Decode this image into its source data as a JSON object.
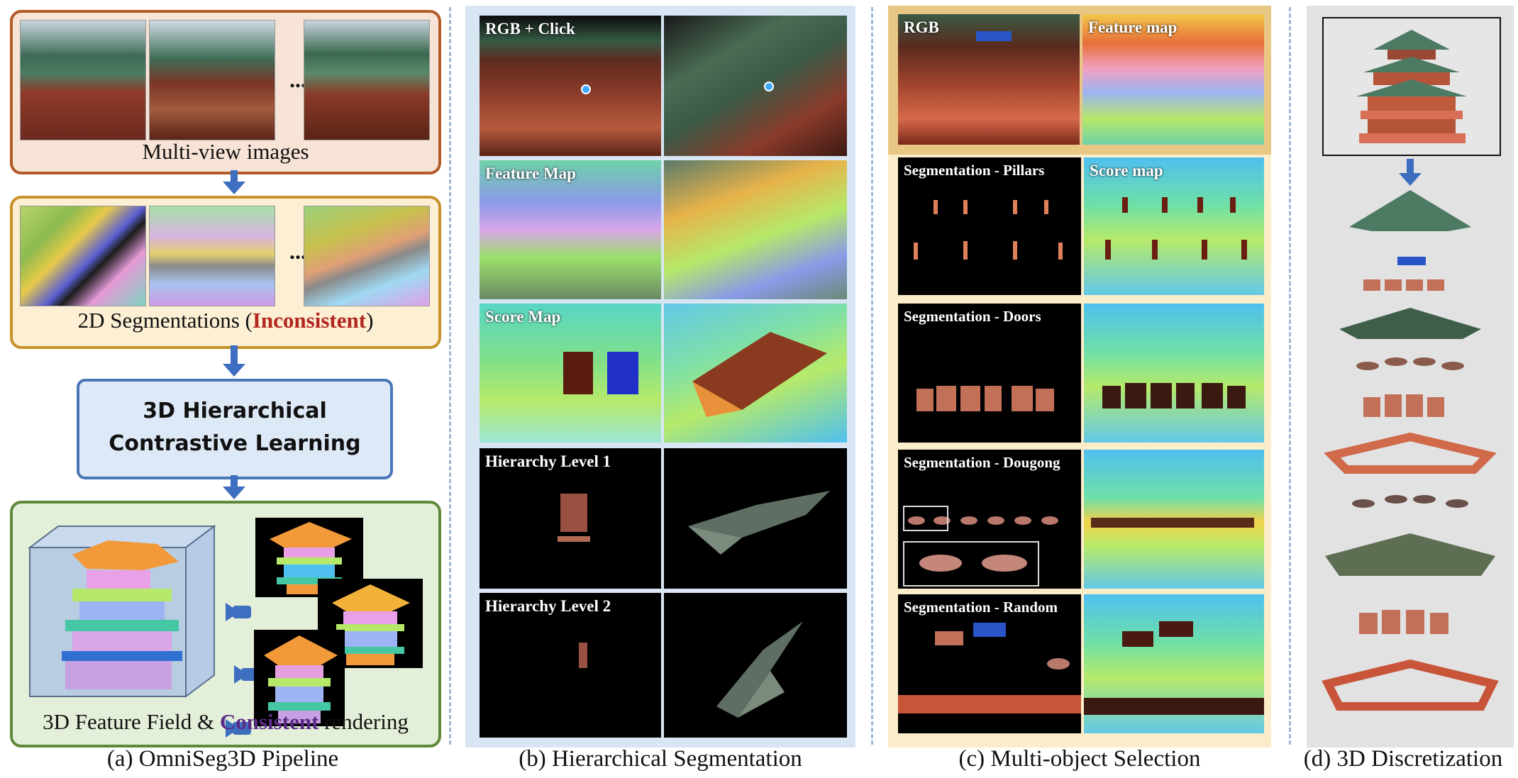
{
  "panel_a": {
    "multiview_label": "Multi-view images",
    "ellipsis": "...",
    "segmentations_prefix": "2D Segmentations (",
    "segmentations_highlight": "Inconsistent",
    "segmentations_suffix": ")",
    "hier_line1": "3D Hierarchical",
    "hier_line2": "Contrastive Learning",
    "field_prefix": "3D Feature Field & ",
    "field_highlight": "Consistent",
    "field_suffix": " rendering",
    "caption": "(a) OmniSeg3D Pipeline",
    "inconsistent_color": "#b3261e",
    "consistent_color": "#5b2a86"
  },
  "panel_b": {
    "caption": "(b) Hierarchical Segmentation",
    "rows": [
      {
        "label": "RGB + Click"
      },
      {
        "label": "Feature Map"
      },
      {
        "label": "Score Map"
      },
      {
        "label": "Hierarchy Level 1"
      },
      {
        "label": "Hierarchy Level 2"
      }
    ]
  },
  "panel_c": {
    "caption": "(c) Multi-object Selection",
    "rgb": "RGB",
    "feature_map": "Feature map",
    "score_map": "Score map",
    "rows": [
      {
        "label": "Segmentation - Pillars"
      },
      {
        "label": "Segmentation - Doors"
      },
      {
        "label": "Segmentation - Dougong"
      },
      {
        "label": "Segmentation - Random"
      }
    ]
  },
  "panel_d": {
    "caption": "(d) 3D Discretization"
  },
  "colors": {
    "arrow": "#3d6ebf",
    "dashed_divider": "#9fb9d8"
  }
}
